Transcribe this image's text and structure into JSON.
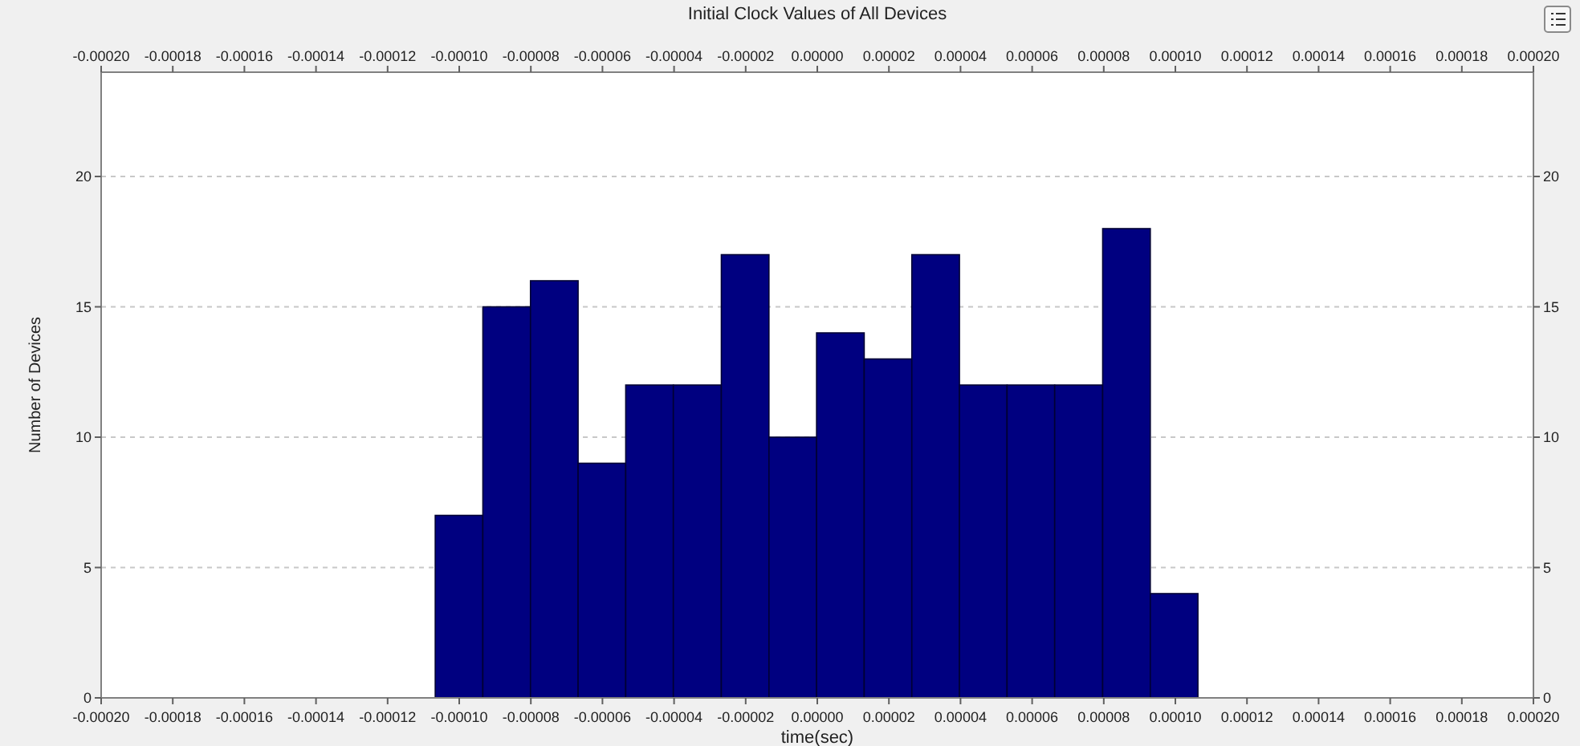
{
  "chart_data": {
    "type": "histogram",
    "title": "Initial Clock Values of All Devices",
    "xlabel": "time(sec)",
    "ylabel": "Number of Devices",
    "bins": [
      -0.0001067,
      -9.34e-05,
      -8.01e-05,
      -6.68e-05,
      -5.35e-05,
      -4.02e-05,
      -2.68e-05,
      -1.35e-05,
      -2e-07,
      1.31e-05,
      2.64e-05,
      3.97e-05,
      5.3e-05,
      6.63e-05,
      7.97e-05,
      9.3e-05,
      0.0001063
    ],
    "values": [
      7,
      15,
      16,
      9,
      12,
      12,
      17,
      10,
      14,
      13,
      17,
      12,
      12,
      12,
      18,
      4
    ],
    "color": "#000080",
    "xlim": [
      -0.0002,
      0.0002
    ],
    "xticks": [
      {
        "value": -0.0002,
        "label": "-0.00020"
      },
      {
        "value": -0.00018,
        "label": "-0.00018"
      },
      {
        "value": -0.00016,
        "label": "-0.00016"
      },
      {
        "value": -0.00014,
        "label": "-0.00014"
      },
      {
        "value": -0.00012,
        "label": "-0.00012"
      },
      {
        "value": -0.0001,
        "label": "-0.00010"
      },
      {
        "value": -8e-05,
        "label": "-0.00008"
      },
      {
        "value": -6e-05,
        "label": "-0.00006"
      },
      {
        "value": -4e-05,
        "label": "-0.00004"
      },
      {
        "value": -2e-05,
        "label": "-0.00002"
      },
      {
        "value": 0,
        "label": "0.00000"
      },
      {
        "value": 2e-05,
        "label": "0.00002"
      },
      {
        "value": 4e-05,
        "label": "0.00004"
      },
      {
        "value": 6e-05,
        "label": "0.00006"
      },
      {
        "value": 8e-05,
        "label": "0.00008"
      },
      {
        "value": 0.0001,
        "label": "0.00010"
      },
      {
        "value": 0.00012,
        "label": "0.00012"
      },
      {
        "value": 0.00014,
        "label": "0.00014"
      },
      {
        "value": 0.00016,
        "label": "0.00016"
      },
      {
        "value": 0.00018,
        "label": "0.00018"
      },
      {
        "value": 0.0002,
        "label": "0.00020"
      }
    ],
    "x2lim": [
      -0.0002,
      0.0002
    ],
    "x2ticks": [
      {
        "value": -0.0002,
        "label": "-0.00020"
      },
      {
        "value": -0.00018,
        "label": "-0.00018"
      },
      {
        "value": -0.00016,
        "label": "-0.00016"
      },
      {
        "value": -0.00014,
        "label": "-0.00014"
      },
      {
        "value": -0.00012,
        "label": "-0.00012"
      },
      {
        "value": -0.0001,
        "label": "-0.00010"
      },
      {
        "value": -8e-05,
        "label": "-0.00008"
      },
      {
        "value": -6e-05,
        "label": "-0.00006"
      },
      {
        "value": -4e-05,
        "label": "-0.00004"
      },
      {
        "value": -2e-05,
        "label": "-0.00002"
      },
      {
        "value": 0,
        "label": "0.00000"
      },
      {
        "value": 2e-05,
        "label": "0.00002"
      },
      {
        "value": 4e-05,
        "label": "0.00004"
      },
      {
        "value": 6e-05,
        "label": "0.00006"
      },
      {
        "value": 8e-05,
        "label": "0.00008"
      },
      {
        "value": 0.0001,
        "label": "0.00010"
      },
      {
        "value": 0.00012,
        "label": "0.00012"
      },
      {
        "value": 0.00014,
        "label": "0.00014"
      },
      {
        "value": 0.00016,
        "label": "0.00016"
      },
      {
        "value": 0.00018,
        "label": "0.00018"
      },
      {
        "value": 0.0002,
        "label": "0.00020"
      }
    ],
    "ylim": [
      0,
      24
    ],
    "yticks": [
      0,
      5,
      10,
      15,
      20
    ],
    "y2lim": [
      0,
      24
    ],
    "y2ticks": [
      0,
      5,
      10,
      15,
      20
    ],
    "grid": "y"
  }
}
